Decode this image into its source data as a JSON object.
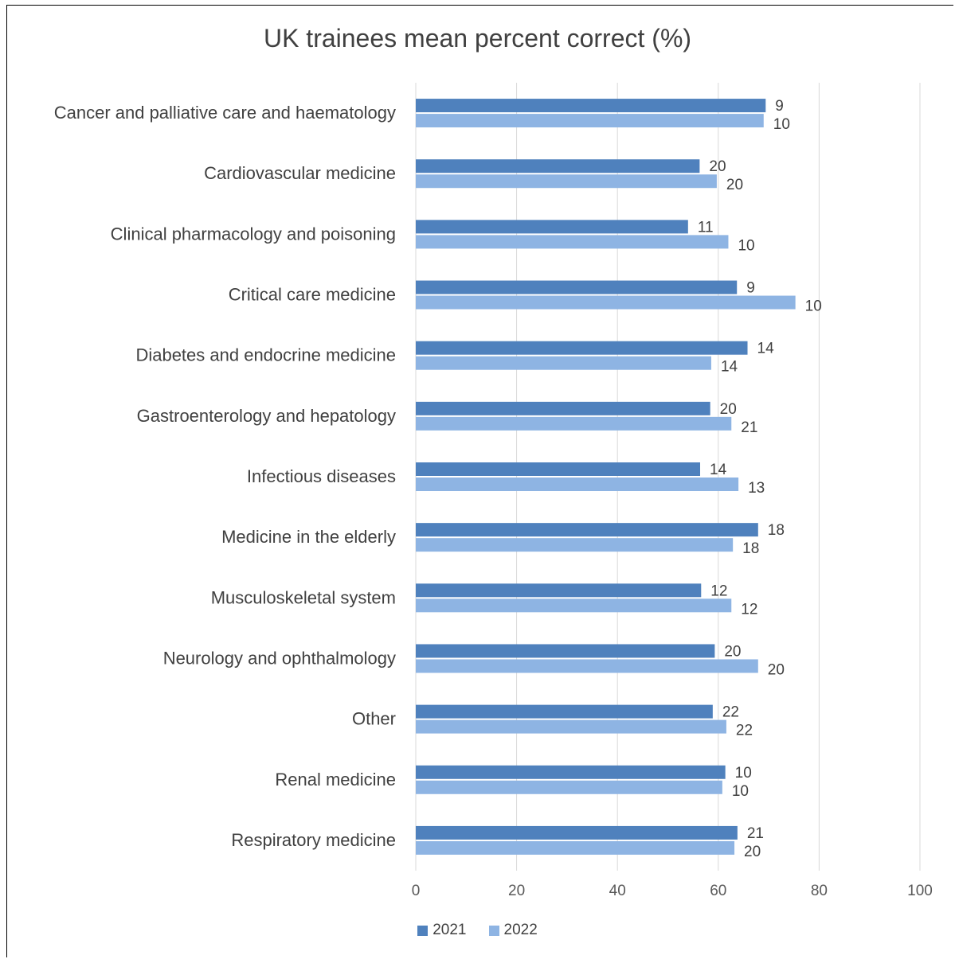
{
  "chart_data": {
    "type": "bar",
    "orientation": "horizontal",
    "title": "UK trainees mean percent correct (%)",
    "xlabel": "",
    "ylabel": "",
    "xlim": [
      0,
      100
    ],
    "xticks": [
      "0",
      "20",
      "40",
      "60",
      "80",
      "100"
    ],
    "grid": true,
    "legend_position": "bottom",
    "categories": [
      "Cancer and palliative care and haematology",
      "Cardiovascular medicine",
      "Clinical pharmacology and poisoning",
      "Critical care medicine",
      "Diabetes and endocrine medicine",
      "Gastroenterology and hepatology",
      "Infectious diseases",
      "Medicine in the elderly",
      "Musculoskeletal system",
      "Neurology and ophthalmology",
      "Other",
      "Renal medicine",
      "Respiratory medicine"
    ],
    "series": [
      {
        "name": "2021",
        "color": "#4f81bd",
        "values": [
          69.4,
          56.3,
          54.0,
          63.7,
          65.8,
          58.4,
          56.4,
          67.9,
          56.6,
          59.3,
          58.9,
          61.4,
          63.8
        ],
        "data_labels": [
          "9",
          "20",
          "11",
          "9",
          "14",
          "20",
          "14",
          "18",
          "12",
          "20",
          "22",
          "10",
          "21"
        ]
      },
      {
        "name": "2022",
        "color": "#8eb4e3",
        "values": [
          69.0,
          59.7,
          62.0,
          75.3,
          58.6,
          62.6,
          64.0,
          62.9,
          62.6,
          67.9,
          61.6,
          60.8,
          63.2
        ],
        "data_labels": [
          "10",
          "20",
          "10",
          "10",
          "14",
          "21",
          "13",
          "18",
          "12",
          "20",
          "22",
          "10",
          "20"
        ]
      }
    ]
  }
}
